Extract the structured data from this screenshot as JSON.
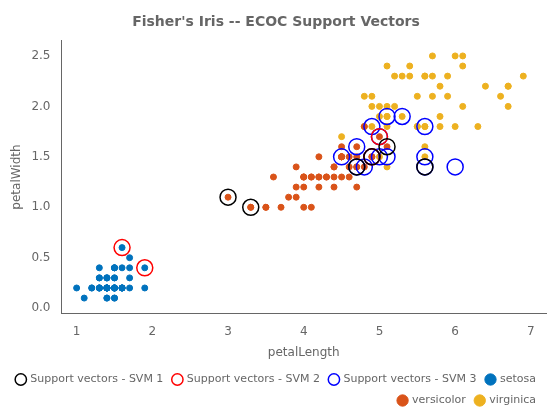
{
  "chart_data": {
    "type": "scatter",
    "title": "Fisher's Iris -- ECOC Support Vectors",
    "xlabel": "petalLength",
    "ylabel": "petalWidth",
    "xlim": [
      0.8,
      7.2
    ],
    "ylim": [
      -0.05,
      2.65
    ],
    "xticks": [
      1,
      2,
      3,
      4,
      5,
      6,
      7
    ],
    "yticks": [
      {
        "value": 0,
        "label": "0.0"
      },
      0.5,
      {
        "value": 1.0,
        "label": "1.0"
      },
      1.5,
      {
        "value": 2.0,
        "label": "2.0"
      },
      2.5
    ],
    "grid": false,
    "legend": "lower right",
    "series": [
      {
        "name": "setosa",
        "color": "#0072BD",
        "marker": "circle",
        "x": [
          1.4,
          1.4,
          1.3,
          1.5,
          1.4,
          1.7,
          1.4,
          1.5,
          1.4,
          1.5,
          1.5,
          1.6,
          1.4,
          1.1,
          1.2,
          1.5,
          1.3,
          1.4,
          1.7,
          1.5,
          1.7,
          1.5,
          1.0,
          1.7,
          1.9,
          1.6,
          1.6,
          1.5,
          1.4,
          1.6,
          1.6,
          1.5,
          1.5,
          1.4,
          1.5,
          1.2,
          1.3,
          1.4,
          1.3,
          1.5,
          1.3,
          1.3,
          1.3,
          1.6,
          1.9,
          1.4,
          1.6,
          1.4,
          1.5,
          1.4
        ],
        "values": [
          0.2,
          0.2,
          0.2,
          0.2,
          0.2,
          0.4,
          0.3,
          0.2,
          0.2,
          0.1,
          0.2,
          0.2,
          0.1,
          0.1,
          0.2,
          0.4,
          0.4,
          0.3,
          0.3,
          0.3,
          0.2,
          0.4,
          0.2,
          0.5,
          0.2,
          0.2,
          0.4,
          0.2,
          0.2,
          0.2,
          0.2,
          0.4,
          0.1,
          0.2,
          0.2,
          0.2,
          0.2,
          0.1,
          0.2,
          0.3,
          0.3,
          0.3,
          0.2,
          0.6,
          0.4,
          0.3,
          0.2,
          0.2,
          0.2,
          0.2
        ]
      },
      {
        "name": "versicolor",
        "color": "#D95319",
        "marker": "circle",
        "x": [
          4.7,
          4.5,
          4.9,
          4.0,
          4.6,
          4.5,
          4.7,
          3.3,
          4.6,
          3.9,
          3.5,
          4.2,
          4.0,
          4.7,
          3.6,
          4.4,
          4.5,
          4.1,
          4.5,
          3.9,
          4.8,
          4.0,
          4.9,
          4.7,
          4.3,
          4.4,
          4.8,
          5.0,
          4.5,
          3.5,
          3.8,
          3.7,
          3.9,
          5.1,
          4.5,
          4.5,
          4.7,
          4.4,
          4.1,
          4.0,
          4.4,
          4.6,
          4.0,
          3.3,
          4.2,
          4.2,
          4.2,
          4.3,
          3.0,
          4.1
        ],
        "values": [
          1.4,
          1.5,
          1.5,
          1.3,
          1.5,
          1.3,
          1.6,
          1.0,
          1.3,
          1.4,
          1.0,
          1.5,
          1.0,
          1.4,
          1.3,
          1.4,
          1.5,
          1.0,
          1.5,
          1.1,
          1.8,
          1.3,
          1.5,
          1.2,
          1.3,
          1.4,
          1.4,
          1.7,
          1.5,
          1.0,
          1.1,
          1.0,
          1.2,
          1.6,
          1.5,
          1.6,
          1.5,
          1.3,
          1.3,
          1.3,
          1.2,
          1.4,
          1.2,
          1.0,
          1.3,
          1.2,
          1.3,
          1.3,
          1.1,
          1.3
        ]
      },
      {
        "name": "virginica",
        "color": "#EDB120",
        "marker": "circle",
        "x": [
          6.0,
          5.1,
          5.9,
          5.6,
          5.8,
          6.6,
          4.5,
          6.3,
          5.8,
          6.1,
          5.1,
          5.3,
          5.5,
          5.0,
          5.1,
          5.3,
          5.5,
          6.7,
          6.9,
          5.0,
          5.7,
          4.9,
          6.7,
          4.9,
          5.7,
          6.0,
          4.8,
          4.9,
          5.6,
          5.8,
          6.1,
          6.4,
          5.6,
          5.1,
          5.6,
          6.1,
          5.6,
          5.5,
          4.8,
          5.4,
          5.6,
          5.1,
          5.9,
          5.7,
          5.2,
          5.0,
          5.2,
          5.4,
          5.1,
          6.7
        ],
        "values": [
          2.5,
          1.9,
          2.1,
          1.8,
          2.2,
          2.1,
          1.7,
          1.8,
          1.8,
          2.5,
          2.0,
          1.9,
          2.1,
          2.0,
          2.4,
          2.3,
          1.8,
          2.2,
          2.3,
          1.5,
          2.3,
          2.0,
          2.0,
          1.8,
          2.1,
          1.8,
          1.8,
          2.1,
          1.6,
          1.9,
          2.0,
          2.2,
          1.5,
          1.4,
          2.3,
          2.4,
          1.8,
          1.8,
          2.1,
          2.4,
          2.3,
          1.9,
          2.3,
          2.5,
          2.3,
          1.9,
          2.0,
          2.3,
          1.8,
          2.2
        ]
      },
      {
        "name": "Support vectors - SVM 1",
        "color": "#000000",
        "marker": "circle_open",
        "x": [
          3.0,
          3.3,
          4.7,
          4.9,
          5.1,
          5.6
        ],
        "values": [
          1.1,
          1.0,
          1.4,
          1.5,
          1.6,
          1.4
        ]
      },
      {
        "name": "Support vectors - SVM 2",
        "color": "#FF0000",
        "marker": "circle_open",
        "x": [
          1.6,
          1.9,
          4.9,
          5.0
        ],
        "values": [
          0.6,
          0.4,
          1.5,
          1.7
        ]
      },
      {
        "name": "Support vectors - SVM 3",
        "color": "#0000FF",
        "marker": "circle_open",
        "x": [
          4.5,
          4.7,
          4.7,
          4.8,
          4.9,
          4.9,
          5.0,
          5.0,
          5.1,
          5.1,
          5.3,
          5.6,
          5.6,
          5.6,
          6.0
        ],
        "values": [
          1.5,
          1.4,
          1.6,
          1.4,
          1.5,
          1.8,
          1.5,
          1.7,
          1.5,
          1.9,
          1.9,
          1.4,
          1.5,
          1.8,
          1.4
        ]
      }
    ]
  }
}
